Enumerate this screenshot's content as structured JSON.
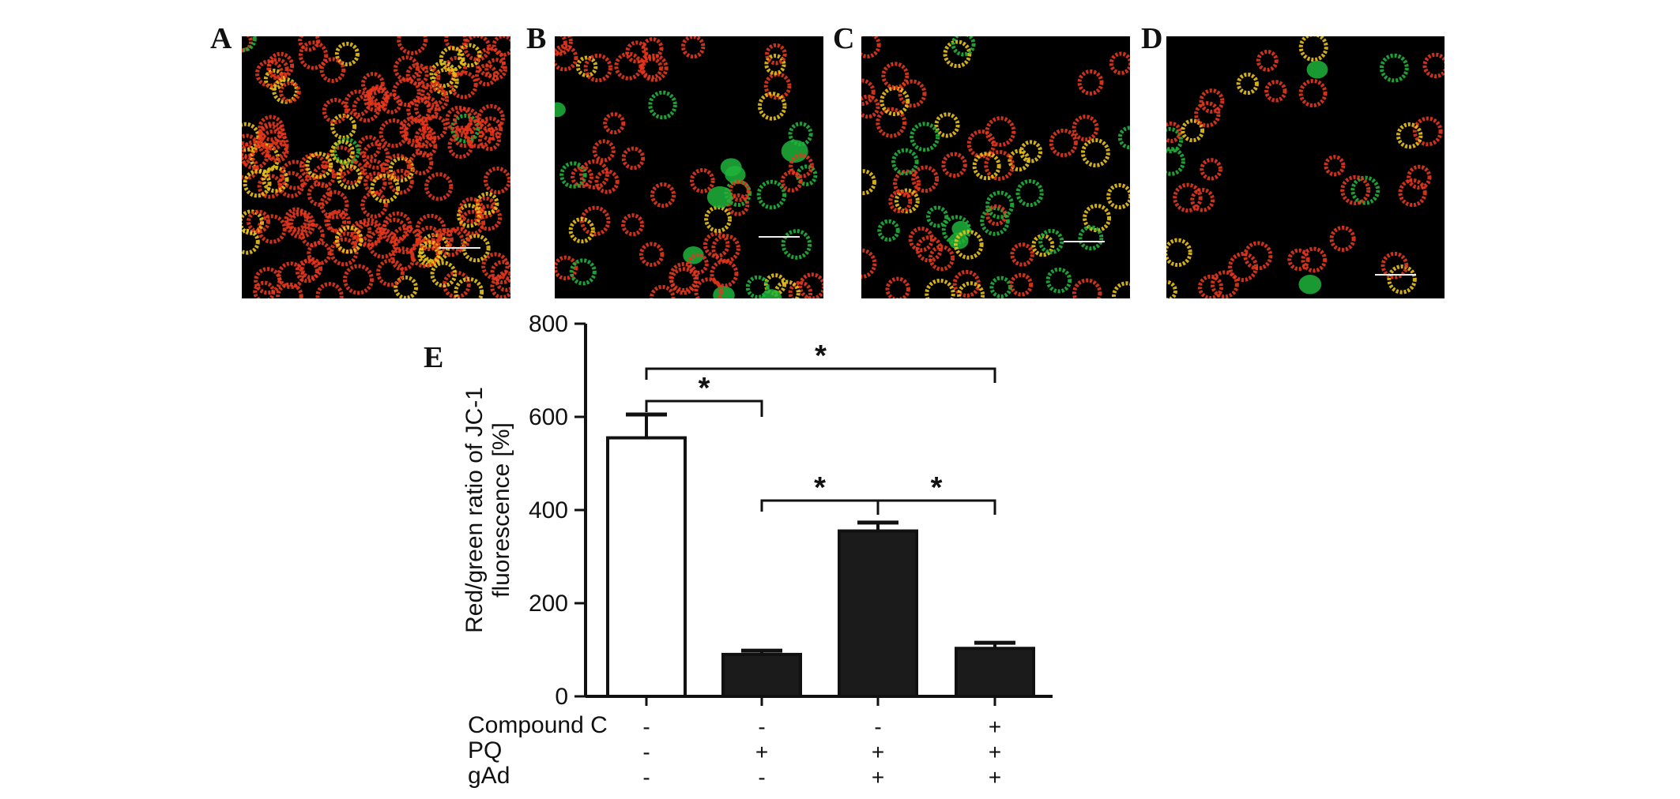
{
  "panels": [
    {
      "letter": "A",
      "description": "JC-1 fluorescence micrograph, predominantly red"
    },
    {
      "letter": "B",
      "description": "JC-1 fluorescence micrograph, mixed red/green"
    },
    {
      "letter": "C",
      "description": "JC-1 fluorescence micrograph, mostly red/yellow"
    },
    {
      "letter": "D",
      "description": "JC-1 fluorescence micrograph, sparse red with green"
    }
  ],
  "chart_panel_letter": "E",
  "colors": {
    "red": "#e8361c",
    "green": "#1fb33a",
    "yellow": "#e9c21a",
    "bar_fill": "#1b1b1b"
  },
  "chart_data": {
    "type": "bar",
    "ylabel_line1": "Red/green ratio of JC-1",
    "ylabel_line2": "fluorescence [%]",
    "ylim": [
      0,
      800
    ],
    "yticks": [
      "0",
      "200",
      "400",
      "600",
      "800"
    ],
    "values": [
      555,
      90,
      355,
      103
    ],
    "errors": [
      50,
      8,
      18,
      12
    ],
    "fills": [
      "white",
      "black",
      "black",
      "black"
    ],
    "treatments": [
      {
        "name": "Compound C",
        "signs": [
          "-",
          "-",
          "-",
          "+"
        ]
      },
      {
        "name": "PQ",
        "signs": [
          "-",
          "+",
          "+",
          "+"
        ]
      },
      {
        "name": "gAd",
        "signs": [
          "-",
          "-",
          "+",
          "+"
        ]
      }
    ],
    "significance": [
      {
        "from": 0,
        "to": 1,
        "label": "*"
      },
      {
        "from": 0,
        "to": 3,
        "label": "*"
      },
      {
        "from": 1,
        "to": 2,
        "label": "*"
      },
      {
        "from": 2,
        "to": 3,
        "label": "*"
      }
    ]
  }
}
